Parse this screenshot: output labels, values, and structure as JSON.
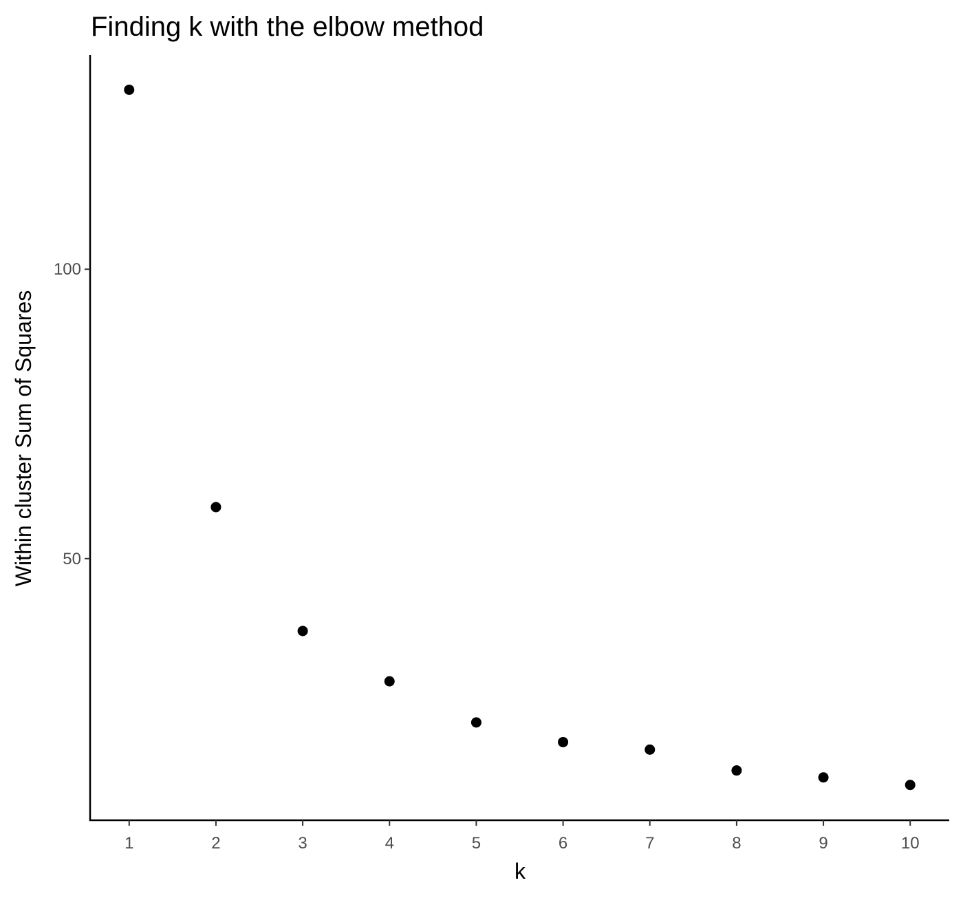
{
  "chart_data": {
    "type": "scatter",
    "title": "Finding k with the elbow method",
    "xlabel": "k",
    "ylabel": "Within cluster Sum of Squares",
    "x": [
      1,
      2,
      3,
      4,
      5,
      6,
      7,
      8,
      9,
      10
    ],
    "y": [
      131.0,
      58.9,
      37.5,
      28.8,
      21.7,
      18.3,
      17.0,
      13.4,
      12.2,
      10.9
    ],
    "xlim": [
      0.55,
      10.45
    ],
    "ylim": [
      4.8,
      137.0
    ],
    "x_ticks": [
      "1",
      "2",
      "3",
      "4",
      "5",
      "6",
      "7",
      "8",
      "9",
      "10"
    ],
    "y_ticks": [
      {
        "value": 50,
        "label": "50"
      },
      {
        "value": 100,
        "label": "100"
      }
    ],
    "grid": false,
    "point_color": "#000000",
    "axis_color": "#000000"
  }
}
